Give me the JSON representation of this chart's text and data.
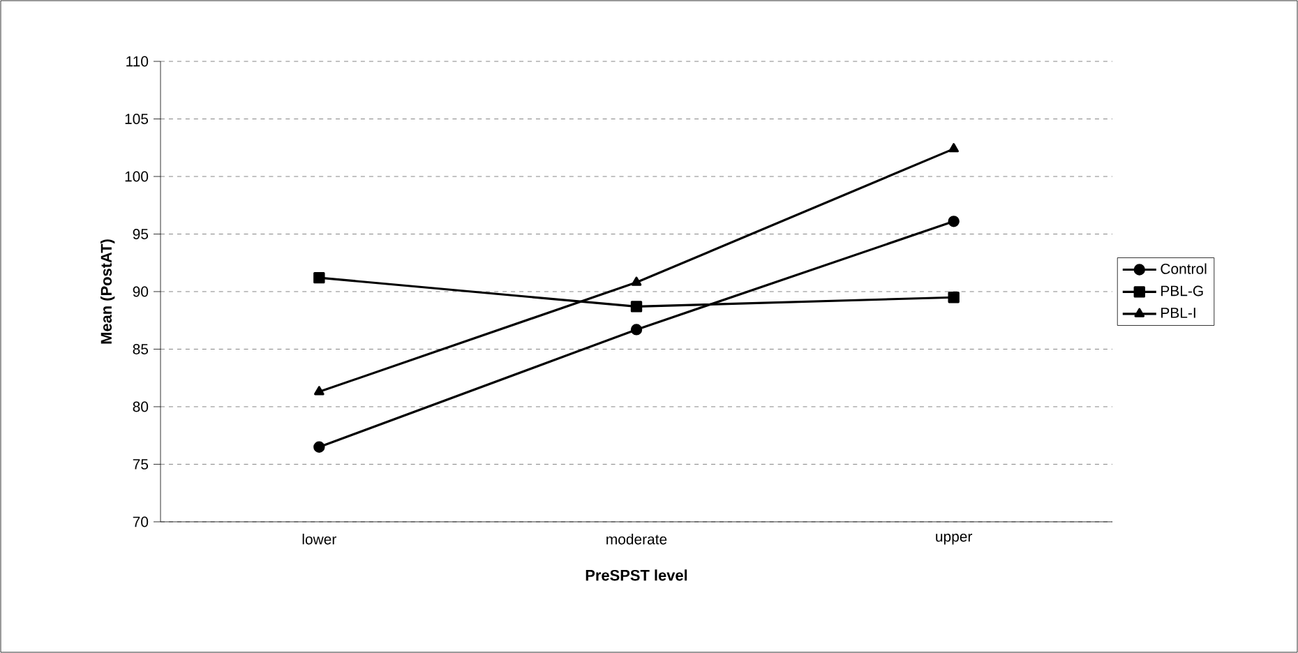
{
  "chart_data": {
    "type": "line",
    "xlabel": "PreSPST level",
    "ylabel": "Mean (PostAT)",
    "categories": [
      "lower",
      "moderate",
      "upper"
    ],
    "series": [
      {
        "name": "Control",
        "color": "#000000",
        "marker": "circle",
        "values": [
          76.5,
          86.7,
          96.1
        ]
      },
      {
        "name": "PBL-G",
        "color": "#000000",
        "marker": "square",
        "values": [
          91.2,
          88.7,
          89.5
        ]
      },
      {
        "name": "PBL-I",
        "color": "#000000",
        "marker": "triangle",
        "values": [
          81.3,
          90.8,
          102.4
        ]
      }
    ],
    "ylim": [
      70,
      110
    ],
    "yticks": [
      70,
      75,
      80,
      85,
      90,
      95,
      100,
      105,
      110
    ],
    "grid": "y",
    "legend": "right",
    "line_style": "solid"
  }
}
